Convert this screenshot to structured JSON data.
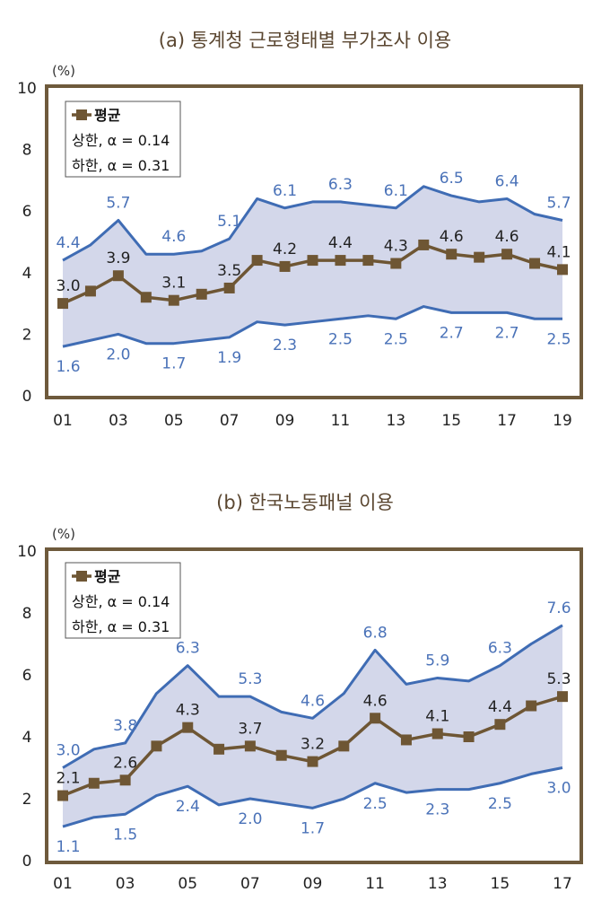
{
  "colors": {
    "upper_lower": "#3f6cb4",
    "band_fill": "#d3d7ea",
    "mean": "#6e5634",
    "frame": "#6e5a3c",
    "label_blue": "#4a72b8"
  },
  "chart_data": [
    {
      "type": "line",
      "title": "(a) 통계청 근로형태별 부가조사 이용",
      "y_unit": "(%)",
      "ylim": [
        0,
        10
      ],
      "yticks": [
        "0",
        "2",
        "4",
        "6",
        "8",
        "10"
      ],
      "xticks": [
        "01",
        "03",
        "05",
        "07",
        "09",
        "11",
        "13",
        "15",
        "17",
        "19"
      ],
      "x": [
        "01",
        "02",
        "03",
        "04",
        "05",
        "06",
        "07",
        "08",
        "09",
        "10",
        "11",
        "12",
        "13",
        "14",
        "15",
        "16",
        "17",
        "18",
        "19"
      ],
      "legend": {
        "position": "top-left",
        "entries": [
          "평균",
          "상한, α = 0.14",
          "하한, α = 0.31"
        ]
      },
      "series": [
        {
          "name": "상한, α = 0.14",
          "role": "upper",
          "values": [
            4.4,
            4.9,
            5.7,
            4.6,
            4.6,
            4.7,
            5.1,
            6.4,
            6.1,
            6.3,
            6.3,
            6.2,
            6.1,
            6.8,
            6.5,
            6.3,
            6.4,
            5.9,
            5.7
          ]
        },
        {
          "name": "평균",
          "role": "mean",
          "values": [
            3.0,
            3.4,
            3.9,
            3.2,
            3.1,
            3.3,
            3.5,
            4.4,
            4.2,
            4.4,
            4.4,
            4.4,
            4.3,
            4.9,
            4.6,
            4.5,
            4.6,
            4.3,
            4.1
          ]
        },
        {
          "name": "하한, α = 0.31",
          "role": "lower",
          "values": [
            1.6,
            1.8,
            2.0,
            1.7,
            1.7,
            1.8,
            1.9,
            2.4,
            2.3,
            2.4,
            2.5,
            2.6,
            2.5,
            2.9,
            2.7,
            2.7,
            2.7,
            2.5,
            2.5
          ]
        }
      ],
      "data_labels": {
        "upper": [
          "4.4",
          "5.7",
          "4.6",
          "5.1",
          "6.1",
          "6.3",
          "6.1",
          "6.5",
          "6.4",
          "5.7"
        ],
        "mean": [
          "3.0",
          "3.9",
          "3.1",
          "3.5",
          "4.2",
          "4.4",
          "4.3",
          "4.6",
          "4.6",
          "4.1"
        ],
        "lower": [
          "1.6",
          "2.0",
          "1.7",
          "1.9",
          "2.3",
          "2.5",
          "2.5",
          "2.7",
          "2.7",
          "2.5"
        ]
      }
    },
    {
      "type": "line",
      "title": "(b) 한국노동패널 이용",
      "y_unit": "(%)",
      "ylim": [
        0,
        10
      ],
      "yticks": [
        "0",
        "2",
        "4",
        "6",
        "8",
        "10"
      ],
      "xticks": [
        "01",
        "03",
        "05",
        "07",
        "09",
        "11",
        "13",
        "15",
        "17"
      ],
      "x": [
        "01",
        "02",
        "03",
        "04",
        "05",
        "06",
        "07",
        "08",
        "09",
        "10",
        "11",
        "12",
        "13",
        "14",
        "15",
        "16",
        "17"
      ],
      "legend": {
        "position": "top-left",
        "entries": [
          "평균",
          "상한, α = 0.14",
          "하한, α = 0.31"
        ]
      },
      "series": [
        {
          "name": "상한, α = 0.14",
          "role": "upper",
          "values": [
            3.0,
            3.6,
            3.8,
            5.4,
            6.3,
            5.3,
            5.3,
            4.8,
            4.6,
            5.4,
            6.8,
            5.7,
            5.9,
            5.8,
            6.3,
            7.0,
            7.6
          ]
        },
        {
          "name": "평균",
          "role": "mean",
          "values": [
            2.1,
            2.5,
            2.6,
            3.7,
            4.3,
            3.6,
            3.7,
            3.4,
            3.2,
            3.7,
            4.6,
            3.9,
            4.1,
            4.0,
            4.4,
            5.0,
            5.3
          ]
        },
        {
          "name": "하한, α = 0.31",
          "role": "lower",
          "values": [
            1.1,
            1.4,
            1.5,
            2.1,
            2.4,
            1.8,
            2.0,
            1.85,
            1.7,
            2.0,
            2.5,
            2.2,
            2.3,
            2.3,
            2.5,
            2.8,
            3.0
          ]
        }
      ],
      "data_labels": {
        "upper": [
          "3.0",
          "3.8",
          "6.3",
          "5.3",
          "4.6",
          "6.8",
          "5.9",
          "6.3",
          "7.6"
        ],
        "mean": [
          "2.1",
          "2.6",
          "4.3",
          "3.7",
          "3.2",
          "4.6",
          "4.1",
          "4.4",
          "5.3"
        ],
        "lower": [
          "1.1",
          "1.5",
          "2.4",
          "2.0",
          "1.7",
          "2.5",
          "2.3",
          "2.5",
          "3.0"
        ]
      }
    }
  ]
}
